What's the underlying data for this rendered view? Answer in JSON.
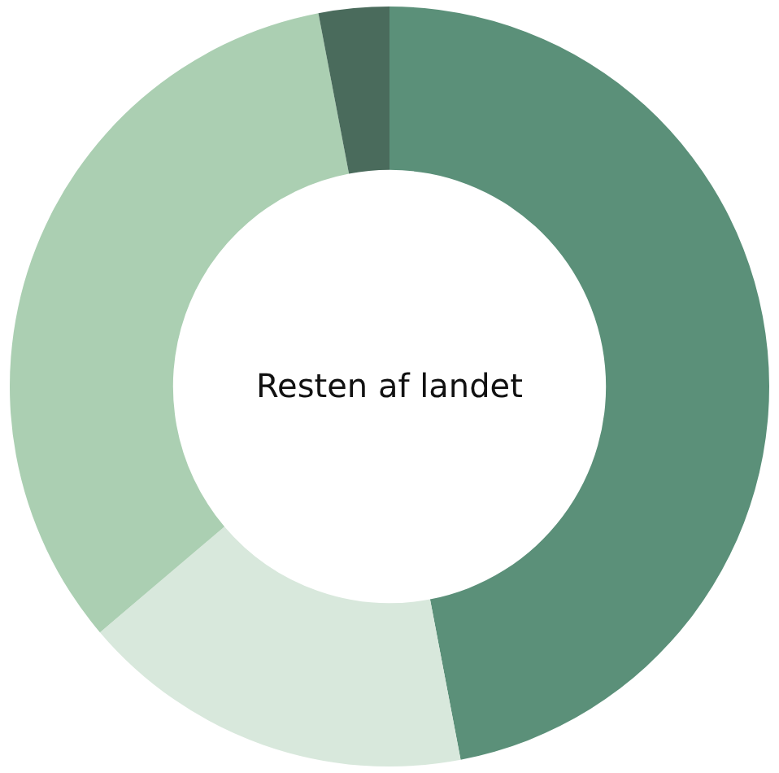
{
  "chart_data": {
    "type": "donut",
    "title": "Resten af landet",
    "categories": [
      null,
      null,
      null,
      null
    ],
    "values": [
      47,
      16.8,
      33.2,
      3
    ],
    "colors": [
      "#5b9079",
      "#d8e8dc",
      "#abcfb2",
      "#4a6b5c"
    ],
    "legend": false
  }
}
